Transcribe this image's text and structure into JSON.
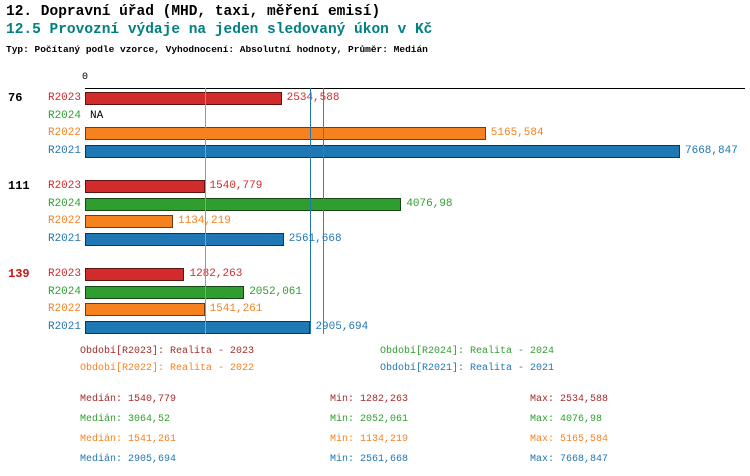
{
  "title": "12. Dopravní úřad (MHD, taxi, měření emisí)",
  "subtitle": "12.5 Provozní výdaje na jeden sledovaný úkon v Kč",
  "meta": "Typ: Počítaný podle vzorce, Vyhodnocení: Absolutní hodnoty, Průměr: Medián",
  "colors": {
    "subtitle": "#008080",
    "axis": "#000000",
    "na_text": "#000000",
    "group_label": "#000000",
    "group_label_highlight": "#cc1111"
  },
  "chart_data": {
    "type": "bar",
    "orientation": "horizontal",
    "unit": "Kč",
    "axis": {
      "zero_label": "0",
      "min": 0
    },
    "legend_position": "bottom",
    "series": [
      {
        "id": "R2023",
        "name": "Realita - 2023",
        "color": "#d22b2b"
      },
      {
        "id": "R2024",
        "name": "Realita - 2024",
        "color": "#2f9e2f"
      },
      {
        "id": "R2022",
        "name": "Realita - 2022",
        "color": "#f5821f"
      },
      {
        "id": "R2021",
        "name": "Realita - 2021",
        "color": "#1f77b4"
      }
    ],
    "groups": [
      {
        "label": "76",
        "highlight": false,
        "bars": [
          {
            "series": "R2023",
            "value": 2534.588,
            "display": "2534,588"
          },
          {
            "series": "R2024",
            "value": null,
            "display": "NA"
          },
          {
            "series": "R2022",
            "value": 5165.584,
            "display": "5165,584"
          },
          {
            "series": "R2021",
            "value": 7668.847,
            "display": "7668,847"
          }
        ]
      },
      {
        "label": "111",
        "highlight": false,
        "bars": [
          {
            "series": "R2023",
            "value": 1540.779,
            "display": "1540,779"
          },
          {
            "series": "R2024",
            "value": 4076.98,
            "display": "4076,98"
          },
          {
            "series": "R2022",
            "value": 1134.219,
            "display": "1134,219"
          },
          {
            "series": "R2021",
            "value": 2561.668,
            "display": "2561,668"
          }
        ]
      },
      {
        "label": "139",
        "highlight": true,
        "bars": [
          {
            "series": "R2023",
            "value": 1282.263,
            "display": "1282,263"
          },
          {
            "series": "R2024",
            "value": 2052.061,
            "display": "2052,061"
          },
          {
            "series": "R2022",
            "value": 1541.261,
            "display": "1541,261"
          },
          {
            "series": "R2021",
            "value": 2905.694,
            "display": "2905,694"
          }
        ]
      }
    ],
    "median_lines": [
      {
        "series": "R2023",
        "value": 1540.779
      },
      {
        "series": "R2024",
        "value": 3064.52
      },
      {
        "series": "R2022",
        "value": 1541.261
      },
      {
        "series": "R2021",
        "value": 2905.694
      }
    ]
  },
  "legend": [
    {
      "label": "Období[R2023]: Realita - 2023",
      "color": "#a52a2a"
    },
    {
      "label": "Období[R2024]: Realita - 2024",
      "color": "#2f9e2f"
    },
    {
      "label": "Období[R2022]: Realita - 2022",
      "color": "#f5821f"
    },
    {
      "label": "Období[R2021]: Realita - 2021",
      "color": "#1f77b4"
    }
  ],
  "stats": {
    "labels": {
      "median": "Medián",
      "min": "Min",
      "max": "Max"
    },
    "rows": [
      {
        "series": "R2023",
        "color": "#a52a2a",
        "median": "1540,779",
        "min": "1282,263",
        "max": "2534,588"
      },
      {
        "series": "R2024",
        "color": "#2f9e2f",
        "median": "3064,52",
        "min": "2052,061",
        "max": "4076,98"
      },
      {
        "series": "R2022",
        "color": "#f5821f",
        "median": "1541,261",
        "min": "1134,219",
        "max": "5165,584"
      },
      {
        "series": "R2021",
        "color": "#1f77b4",
        "median": "2905,694",
        "min": "2561,668",
        "max": "7668,847"
      }
    ]
  }
}
